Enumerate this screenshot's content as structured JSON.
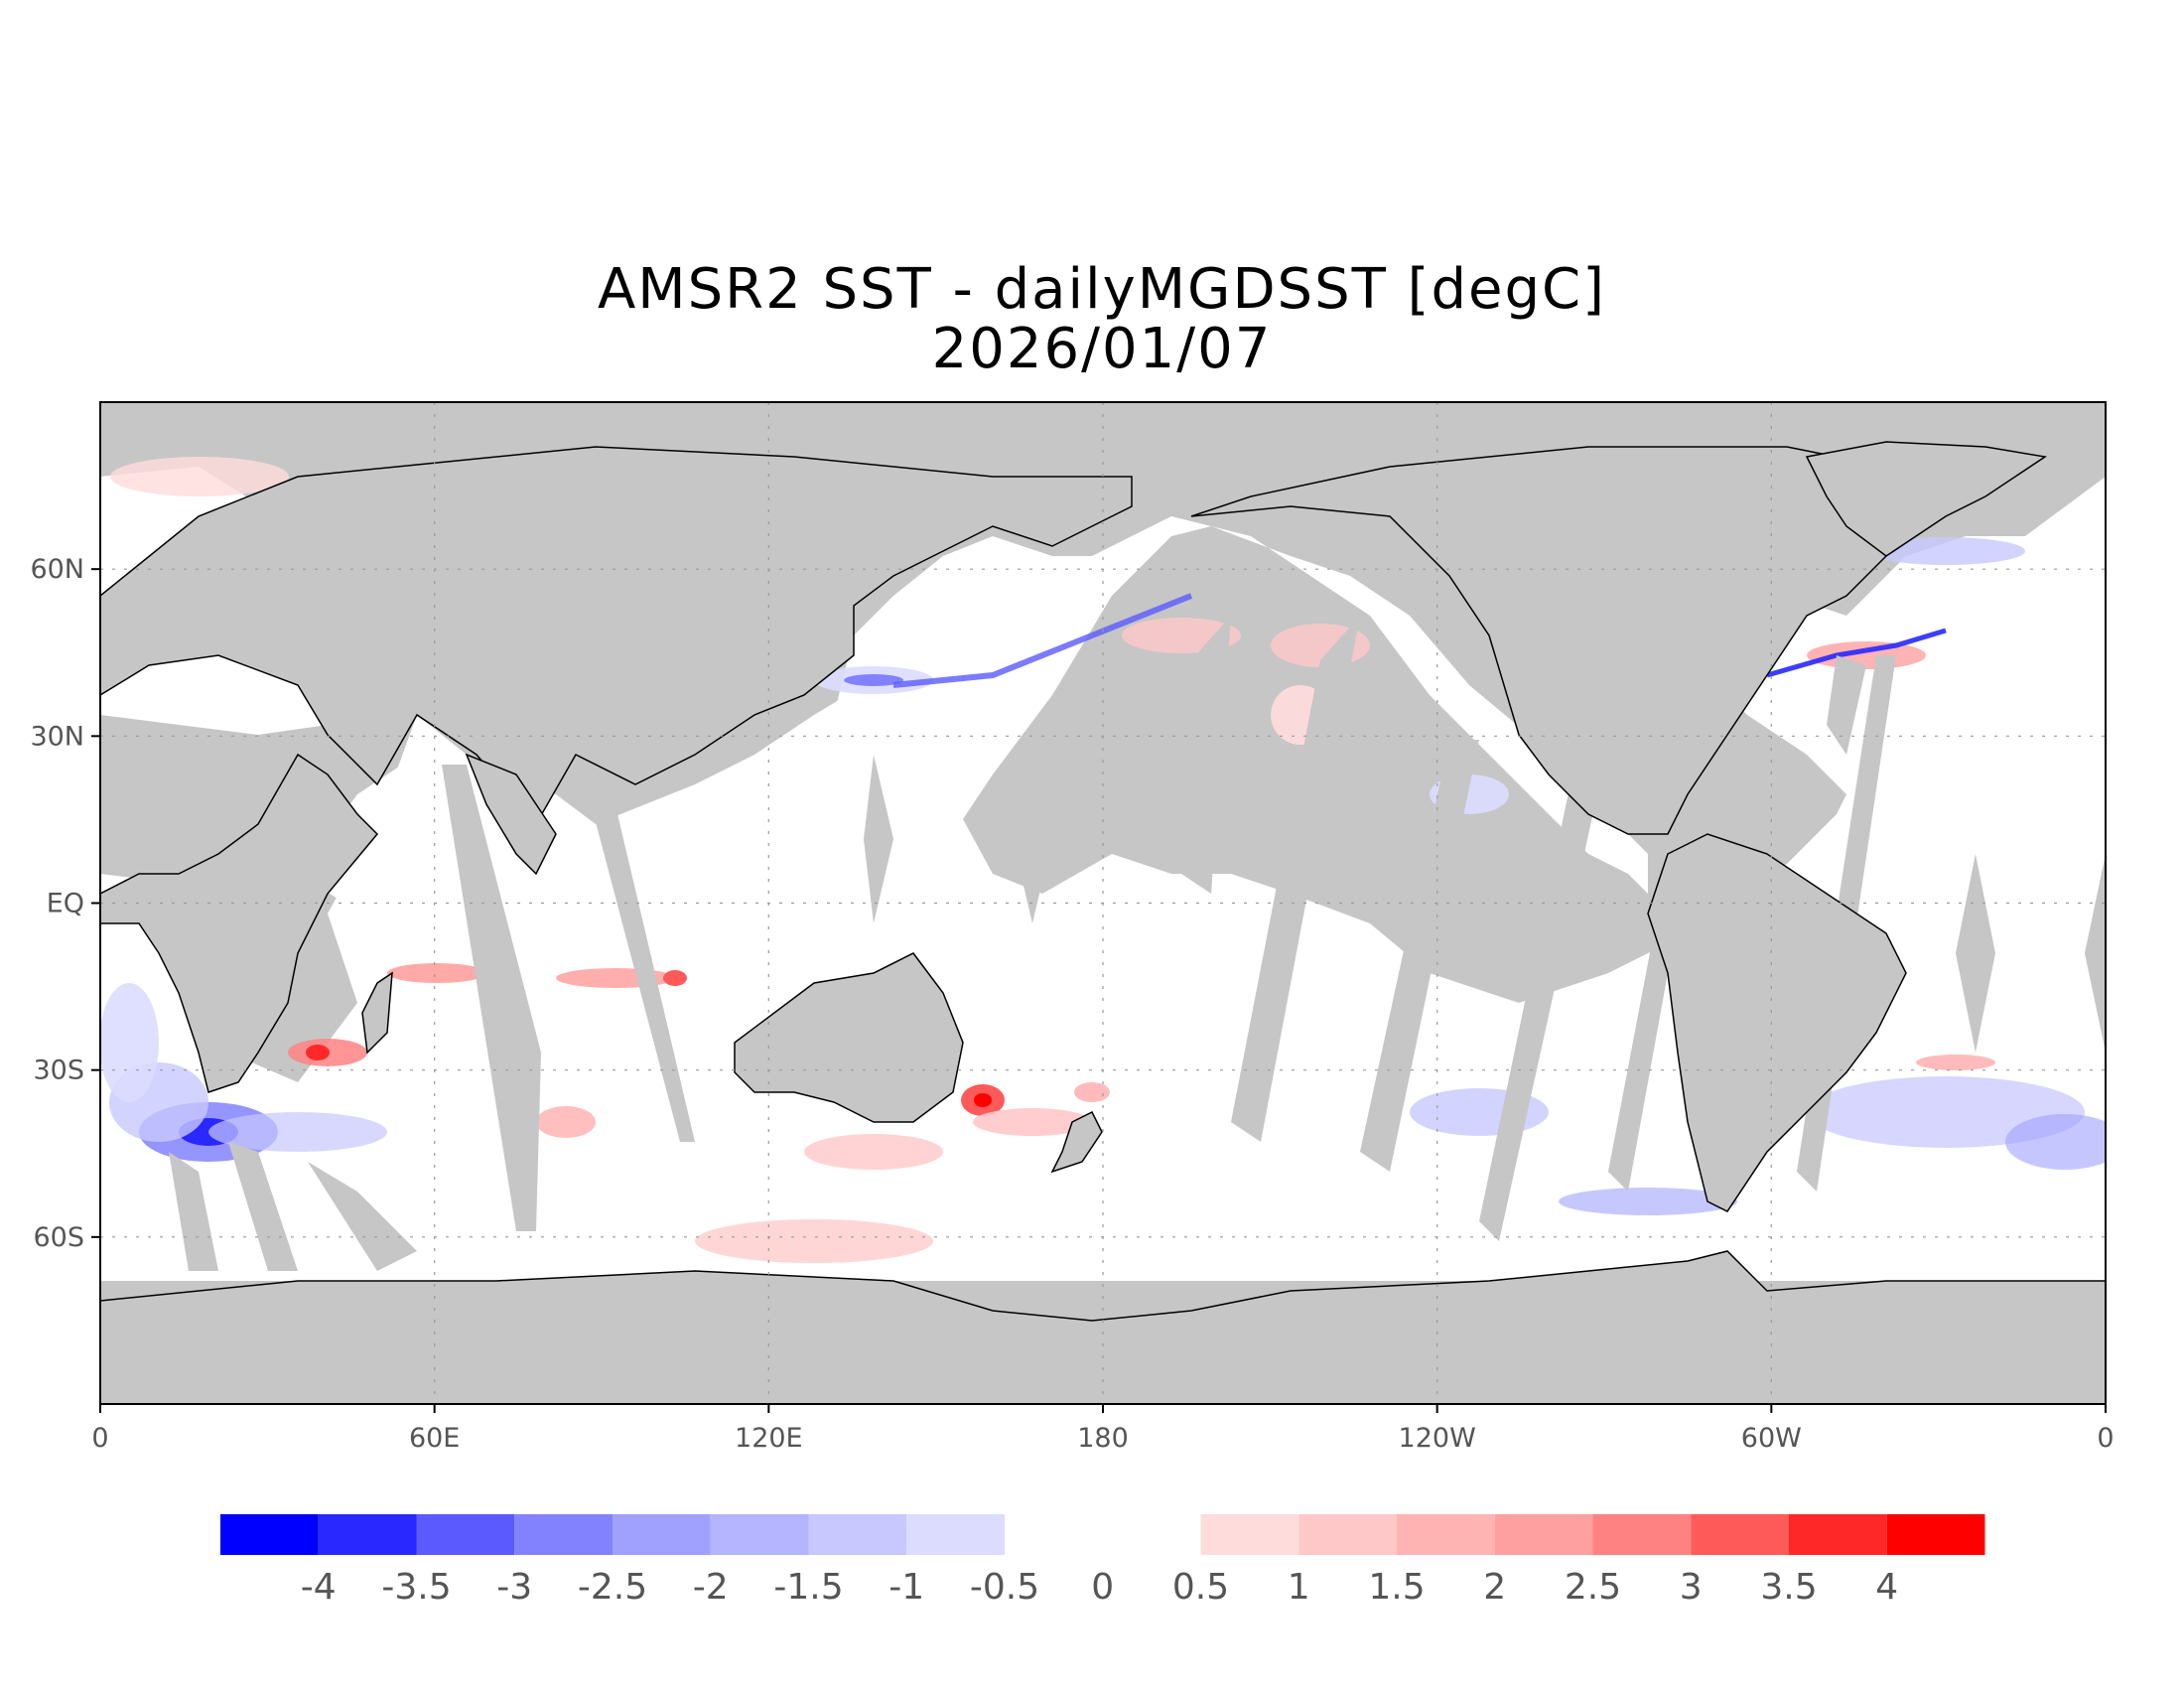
{
  "title": {
    "line1": "AMSR2 SST - dailyMGDSST [degC]",
    "line2": "2026/01/07"
  },
  "map": {
    "projection": "cylindrical equidistant",
    "lon_range": [
      0,
      360
    ],
    "lat_range": [
      -90,
      90
    ],
    "land_color": "#c6c6c6",
    "ocean_zero_color": "#ffffff",
    "coastline_color": "#000000",
    "x_ticks": [
      {
        "lon": 0,
        "label": "0"
      },
      {
        "lon": 60,
        "label": "60E"
      },
      {
        "lon": 120,
        "label": "120E"
      },
      {
        "lon": 180,
        "label": "180"
      },
      {
        "lon": 240,
        "label": "120W"
      },
      {
        "lon": 300,
        "label": "60W"
      },
      {
        "lon": 360,
        "label": "0"
      }
    ],
    "y_ticks": [
      {
        "lat": 60,
        "label": "60N"
      },
      {
        "lat": 30,
        "label": "30N"
      },
      {
        "lat": 0,
        "label": "EQ"
      },
      {
        "lat": -30,
        "label": "30S"
      },
      {
        "lat": -60,
        "label": "60S"
      }
    ]
  },
  "colorbar": {
    "boundaries": [
      -4.5,
      -4,
      -3.5,
      -3,
      -2.5,
      -2,
      -1.5,
      -1,
      -0.5,
      0.5,
      1,
      1.5,
      2,
      2.5,
      3,
      3.5,
      4,
      4.5
    ],
    "colors": [
      "#0000ff",
      "#2828ff",
      "#5a5aff",
      "#8282ff",
      "#a0a0ff",
      "#b4b4ff",
      "#c8c8ff",
      "#dcdcff",
      "#ffffff",
      "#ffdcdc",
      "#ffc8c8",
      "#ffb4b4",
      "#ffa0a0",
      "#ff8282",
      "#ff5a5a",
      "#ff2828",
      "#ff0000"
    ],
    "labels": [
      "-4",
      "-3.5",
      "-3",
      "-2.5",
      "-2",
      "-1.5",
      "-1",
      "-0.5",
      "0",
      "0.5",
      "1",
      "1.5",
      "2",
      "2.5",
      "3",
      "3.5",
      "4"
    ]
  }
}
